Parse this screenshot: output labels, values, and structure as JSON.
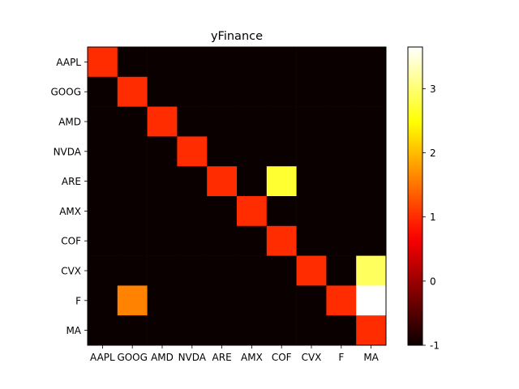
{
  "chart_data": {
    "type": "heatmap",
    "title": "yFinance",
    "x_categories": [
      "AAPL",
      "GOOG",
      "AMD",
      "NVDA",
      "ARE",
      "AMX",
      "COF",
      "CVX",
      "F",
      "MA"
    ],
    "y_categories": [
      "AAPL",
      "GOOG",
      "AMD",
      "NVDA",
      "ARE",
      "AMX",
      "COF",
      "CVX",
      "F",
      "MA"
    ],
    "values": [
      [
        1,
        -1,
        -1,
        -1,
        -1,
        -1,
        -1,
        -1,
        -1,
        -1
      ],
      [
        -1,
        1,
        -1,
        -1,
        -1,
        -1,
        -1,
        -1,
        -1,
        -1
      ],
      [
        -1,
        -1,
        1,
        -1,
        -1,
        -1,
        -1,
        -1,
        -1,
        -1
      ],
      [
        -1,
        -1,
        -1,
        1,
        -1,
        -1,
        -1,
        -1,
        -1,
        -1
      ],
      [
        -1,
        -1,
        -1,
        -1,
        1,
        -1,
        2.7,
        -1,
        -1,
        -1
      ],
      [
        -1,
        -1,
        -1,
        -1,
        -1,
        1,
        -1,
        -1,
        -1,
        -1
      ],
      [
        -1,
        -1,
        -1,
        -1,
        -1,
        -1,
        1,
        -1,
        -1,
        -1
      ],
      [
        -1,
        -1,
        -1,
        -1,
        -1,
        -1,
        -1,
        1,
        -1,
        2.9
      ],
      [
        -1,
        1.6,
        -1,
        -1,
        -1,
        -1,
        -1,
        -1,
        1,
        3.65
      ],
      [
        -1,
        -1,
        -1,
        -1,
        -1,
        -1,
        -1,
        -1,
        -1,
        1
      ]
    ],
    "colormap": "hot",
    "vmin": -1,
    "vmax": 3.65,
    "colorbar_ticks": [
      "-1",
      "0",
      "1",
      "2",
      "3"
    ],
    "colorbar_tick_values": [
      -1,
      0,
      1,
      2,
      3
    ],
    "xlabel": "",
    "ylabel": "",
    "grid": false
  }
}
